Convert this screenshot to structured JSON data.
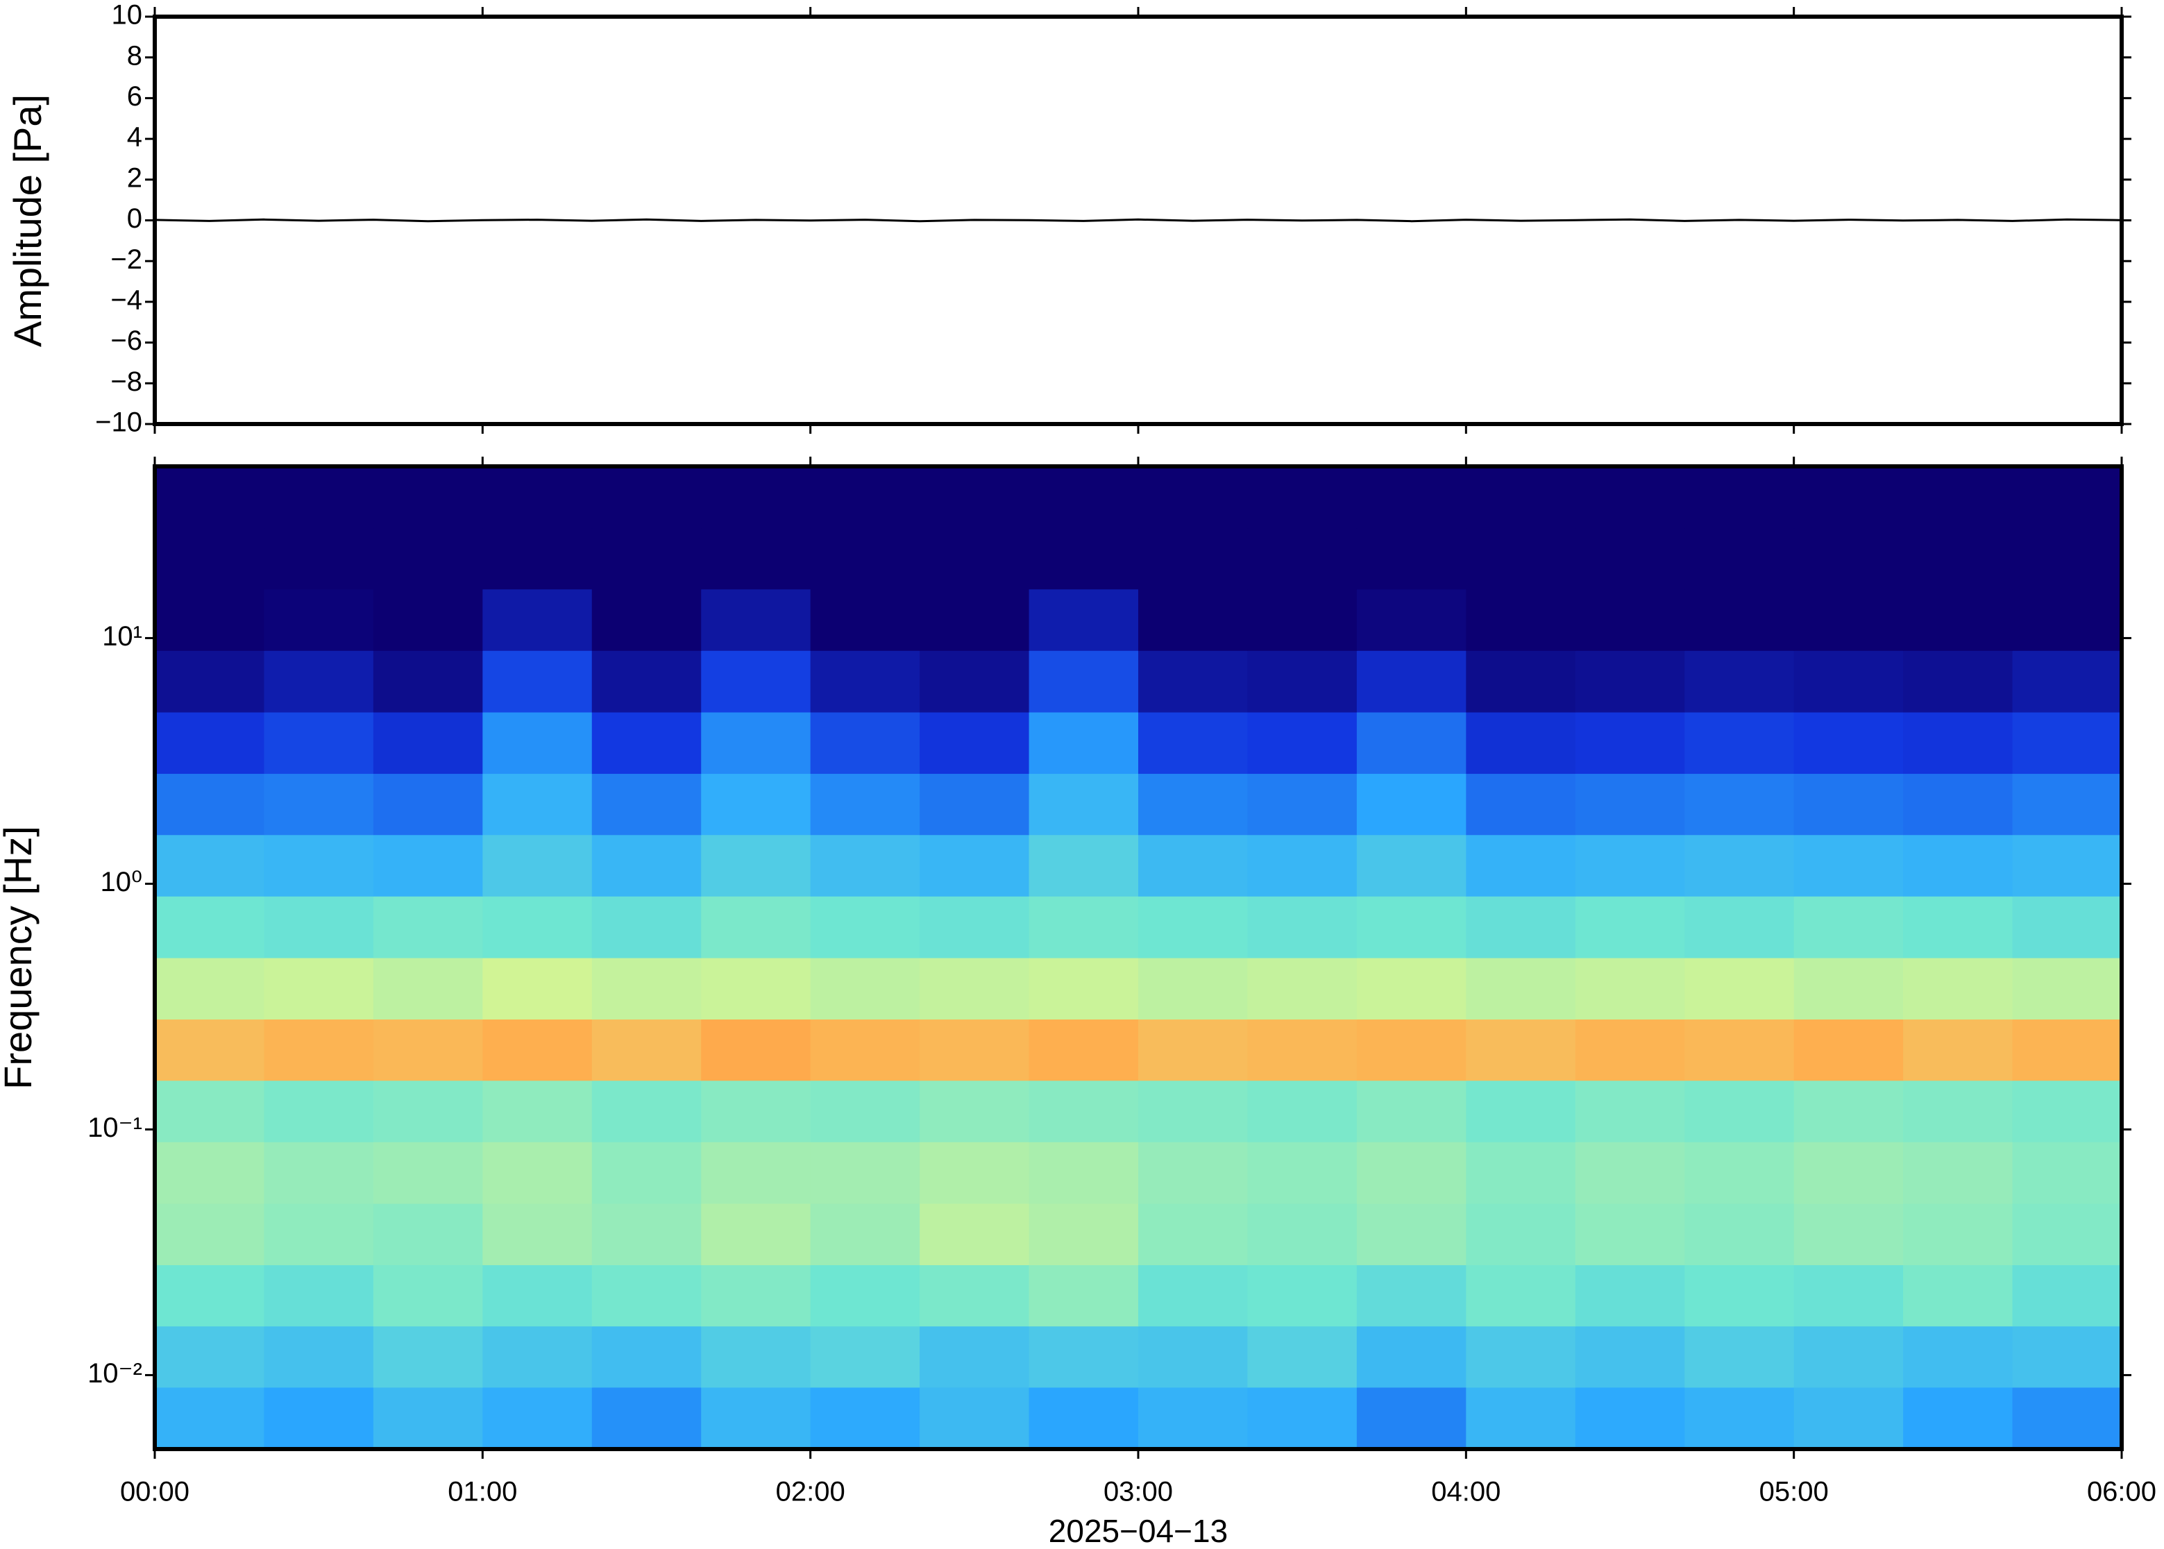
{
  "chart_data": [
    {
      "type": "line",
      "ylabel": "Amplitude [Pa]",
      "xlim": [
        "00:00",
        "06:00"
      ],
      "ylim": [
        -10,
        10
      ],
      "yticks": [
        {
          "value": -10,
          "label": "−10"
        },
        {
          "value": -8,
          "label": "−8"
        },
        {
          "value": -6,
          "label": "−6"
        },
        {
          "value": -4,
          "label": "−4"
        },
        {
          "value": -2,
          "label": "−2"
        },
        0,
        2,
        4,
        6,
        8,
        10
      ],
      "color": "#000000",
      "x": [
        "00:00",
        "00:10",
        "00:20",
        "00:30",
        "00:40",
        "00:50",
        "01:00",
        "01:10",
        "01:20",
        "01:30",
        "01:40",
        "01:50",
        "02:00",
        "02:10",
        "02:20",
        "02:30",
        "02:40",
        "02:50",
        "03:00",
        "03:10",
        "03:20",
        "03:30",
        "03:40",
        "03:50",
        "04:00",
        "04:10",
        "04:20",
        "04:30",
        "04:40",
        "04:50",
        "05:00",
        "05:10",
        "05:20",
        "05:30",
        "05:40",
        "05:50",
        "06:00"
      ],
      "values": [
        0.02,
        -0.03,
        0.04,
        -0.02,
        0.03,
        -0.04,
        0.01,
        0.03,
        -0.02,
        0.04,
        -0.03,
        0.02,
        -0.01,
        0.03,
        -0.04,
        0.02,
        0.01,
        -0.03,
        0.04,
        -0.02,
        0.03,
        -0.01,
        0.02,
        -0.04,
        0.03,
        -0.02,
        0.01,
        0.04,
        -0.03,
        0.02,
        -0.02,
        0.03,
        -0.01,
        0.02,
        -0.03,
        0.04,
        0.01
      ]
    },
    {
      "type": "heatmap",
      "ylabel": "Frequency [Hz]",
      "xlabel": "2025−04−13",
      "xlim": [
        "00:00",
        "06:00"
      ],
      "xticks": [
        "00:00",
        "01:00",
        "02:00",
        "03:00",
        "04:00",
        "05:00",
        "06:00"
      ],
      "ylim": [
        0.005,
        50
      ],
      "log_y": true,
      "yticks": [
        {
          "value": 0.01,
          "label": "10⁻²"
        },
        {
          "value": 0.1,
          "label": "10⁻¹"
        },
        {
          "value": 1,
          "label": "10⁰"
        },
        {
          "value": 10,
          "label": "10¹"
        }
      ],
      "zlim": [
        0,
        100
      ],
      "colormap": [
        "#0c0072",
        "#1236e0",
        "#2aa8ff",
        "#6ee6d2",
        "#dcf58e",
        "#ffae4e",
        "#e0401e"
      ],
      "x": [
        "00:00",
        "00:20",
        "00:40",
        "01:00",
        "01:20",
        "01:40",
        "02:00",
        "02:20",
        "02:40",
        "03:00",
        "03:20",
        "03:40",
        "04:00",
        "04:20",
        "04:40",
        "05:00",
        "05:20",
        "05:40"
      ],
      "y": [
        0.0067,
        0.0119,
        0.0211,
        0.0375,
        0.0667,
        0.119,
        0.211,
        0.375,
        0.667,
        1.19,
        2.11,
        3.75,
        6.67,
        11.9,
        21.1,
        37.5
      ],
      "z": [
        [
          36,
          33,
          38,
          35,
          30,
          37,
          34,
          38,
          33,
          36,
          35,
          28,
          37,
          34,
          36,
          38,
          33,
          30
        ],
        [
          42,
          40,
          44,
          41,
          39,
          43,
          45,
          40,
          42,
          41,
          44,
          38,
          42,
          40,
          43,
          41,
          39,
          40
        ],
        [
          50,
          48,
          52,
          49,
          51,
          53,
          50,
          52,
          55,
          49,
          50,
          47,
          51,
          48,
          50,
          49,
          52,
          48
        ],
        [
          57,
          55,
          54,
          58,
          56,
          60,
          57,
          62,
          60,
          55,
          54,
          56,
          53,
          55,
          54,
          56,
          55,
          53
        ],
        [
          58,
          56,
          57,
          59,
          55,
          58,
          58,
          60,
          59,
          56,
          55,
          57,
          54,
          56,
          55,
          57,
          56,
          54
        ],
        [
          54,
          52,
          53,
          55,
          52,
          54,
          53,
          55,
          54,
          53,
          52,
          54,
          51,
          53,
          52,
          54,
          53,
          52
        ],
        [
          80,
          82,
          81,
          83,
          80,
          84,
          82,
          81,
          83,
          80,
          81,
          82,
          80,
          82,
          81,
          83,
          80,
          82
        ],
        [
          63,
          64,
          62,
          65,
          63,
          64,
          62,
          63,
          64,
          62,
          63,
          64,
          62,
          63,
          64,
          62,
          63,
          62
        ],
        [
          50,
          49,
          51,
          50,
          48,
          52,
          50,
          49,
          51,
          50,
          49,
          50,
          48,
          50,
          49,
          51,
          50,
          48
        ],
        [
          38,
          37,
          36,
          42,
          37,
          43,
          39,
          37,
          44,
          38,
          37,
          41,
          36,
          37,
          38,
          37,
          36,
          37
        ],
        [
          26,
          27,
          25,
          36,
          27,
          35,
          29,
          26,
          37,
          28,
          27,
          33,
          25,
          26,
          27,
          26,
          25,
          27
        ],
        [
          16,
          19,
          15,
          30,
          17,
          29,
          20,
          16,
          31,
          18,
          17,
          25,
          15,
          16,
          18,
          17,
          16,
          18
        ],
        [
          5,
          9,
          4,
          19,
          6,
          18,
          8,
          5,
          20,
          7,
          6,
          13,
          4,
          5,
          7,
          6,
          5,
          8
        ],
        [
          0,
          1,
          0,
          8,
          0,
          7,
          0,
          0,
          9,
          0,
          0,
          2,
          0,
          0,
          0,
          0,
          0,
          0
        ],
        [
          0,
          0,
          0,
          0,
          0,
          0,
          0,
          0,
          0,
          0,
          0,
          0,
          0,
          0,
          0,
          0,
          0,
          0
        ],
        [
          0,
          0,
          0,
          0,
          0,
          0,
          0,
          0,
          0,
          0,
          0,
          0,
          0,
          0,
          0,
          0,
          0,
          0
        ]
      ]
    }
  ]
}
